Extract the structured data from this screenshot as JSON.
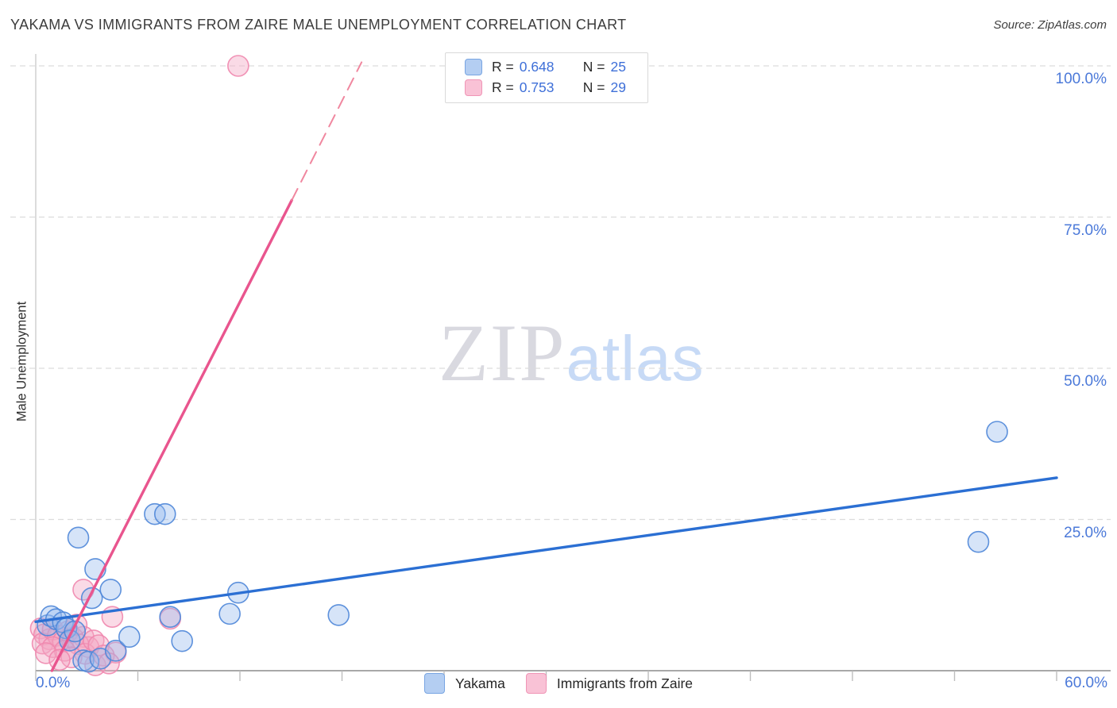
{
  "header": {
    "title": "YAKAMA VS IMMIGRANTS FROM ZAIRE MALE UNEMPLOYMENT CORRELATION CHART",
    "source": "Source: ZipAtlas.com"
  },
  "legend_box": {
    "series": [
      {
        "r_label": "R =",
        "r_value": "0.648",
        "n_label": "N =",
        "n_value": "25",
        "swatch_fill": "#b4cef2",
        "swatch_stroke": "#78a5e2"
      },
      {
        "r_label": "R =",
        "r_value": "0.753",
        "n_label": "N =",
        "n_value": "29",
        "swatch_fill": "#f9c2d6",
        "swatch_stroke": "#f095b6"
      }
    ]
  },
  "watermark": {
    "zip": "ZIP",
    "atlas": "atlas"
  },
  "axes": {
    "y_label": "Male Unemployment",
    "x_min_label": "0.0%",
    "x_max_label": "60.0%"
  },
  "bottom_legend": [
    {
      "label": "Yakama",
      "swatch_fill": "#b4cef2",
      "swatch_stroke": "#78a5e2"
    },
    {
      "label": "Immigrants from Zaire",
      "swatch_fill": "#f9c2d6",
      "swatch_stroke": "#f095b6"
    }
  ],
  "chart_data": {
    "type": "scatter",
    "title": "YAKAMA VS IMMIGRANTS FROM ZAIRE MALE UNEMPLOYMENT CORRELATION CHART",
    "xlabel": "",
    "ylabel": "Male Unemployment",
    "xlim": [
      0,
      60
    ],
    "ylim": [
      0,
      102
    ],
    "x_tick_step_pct": 6,
    "grid": "dashed-horizontal",
    "y_gridlines": [
      {
        "value": 100,
        "label": "100.0%"
      },
      {
        "value": 75,
        "label": "75.0%"
      },
      {
        "value": 50,
        "label": "50.0%"
      },
      {
        "value": 25,
        "label": "25.0%"
      }
    ],
    "series": [
      {
        "name": "Yakama",
        "stroke": "#4e86d8",
        "fill": "#93b9ec",
        "fill_opacity": 0.38,
        "r": 13,
        "n": 25,
        "correlation_R": 0.648,
        "points": [
          [
            0.7,
            7.5
          ],
          [
            0.9,
            9.0
          ],
          [
            1.2,
            8.5
          ],
          [
            1.6,
            8.0
          ],
          [
            1.8,
            7.0
          ],
          [
            2.0,
            5.0
          ],
          [
            2.3,
            6.5
          ],
          [
            2.5,
            22.0
          ],
          [
            2.8,
            1.7
          ],
          [
            3.1,
            1.5
          ],
          [
            3.3,
            12.0
          ],
          [
            3.5,
            16.8
          ],
          [
            3.8,
            2.0
          ],
          [
            4.4,
            13.4
          ],
          [
            4.7,
            3.3
          ],
          [
            5.5,
            5.6
          ],
          [
            7.0,
            25.9
          ],
          [
            7.6,
            25.9
          ],
          [
            7.9,
            8.9
          ],
          [
            8.6,
            4.9
          ],
          [
            11.4,
            9.4
          ],
          [
            11.9,
            12.9
          ],
          [
            17.8,
            9.2
          ],
          [
            55.4,
            21.3
          ],
          [
            56.5,
            39.5
          ]
        ]
      },
      {
        "name": "Immigrants from Zaire",
        "stroke": "#ef87ae",
        "fill": "#f4a7c3",
        "fill_opacity": 0.42,
        "r": 13,
        "n": 29,
        "correlation_R": 0.753,
        "points": [
          [
            11.9,
            100.0
          ],
          [
            2.8,
            13.4
          ],
          [
            4.5,
            8.9
          ],
          [
            2.8,
            5.6
          ],
          [
            3.1,
            3.9
          ],
          [
            3.5,
            0.9
          ],
          [
            4.7,
            3.0
          ],
          [
            7.9,
            8.6
          ],
          [
            0.3,
            7.0
          ],
          [
            0.5,
            6.0
          ],
          [
            0.8,
            5.2
          ],
          [
            0.4,
            4.5
          ],
          [
            1.0,
            6.8
          ],
          [
            1.3,
            5.8
          ],
          [
            1.6,
            4.8
          ],
          [
            1.0,
            3.9
          ],
          [
            1.9,
            6.5
          ],
          [
            2.2,
            5.4
          ],
          [
            2.5,
            4.4
          ],
          [
            1.7,
            3.3
          ],
          [
            2.9,
            2.8
          ],
          [
            2.1,
            2.2
          ],
          [
            3.4,
            5.0
          ],
          [
            3.7,
            4.2
          ],
          [
            4.0,
            2.5
          ],
          [
            4.3,
            1.2
          ],
          [
            0.6,
            2.9
          ],
          [
            1.4,
            1.8
          ],
          [
            2.4,
            7.6
          ]
        ]
      }
    ],
    "trendlines": [
      {
        "series": "Yakama",
        "x1": 0,
        "y1": 8.1,
        "x2": 60,
        "y2": 31.9,
        "color": "#2b6fd3",
        "style": "solid",
        "width": 3.4
      },
      {
        "series": "Immigrants from Zaire",
        "x1": 0.95,
        "y1": 0,
        "x2": 15.05,
        "y2": 77.8,
        "color": "#e9558e",
        "style": "solid",
        "width": 3.4
      },
      {
        "series": "Immigrants from Zaire",
        "x1": 15.05,
        "y1": 77.8,
        "x2": 19.15,
        "y2": 100.6,
        "color": "#f0879f",
        "style": "dashed",
        "width": 2
      }
    ],
    "legend_position": "bottom-center",
    "colors": {
      "grid": "#dcdcdc",
      "axis_line": "#9b9b9b",
      "tick": "#bdbdbd",
      "plot_left_border": "#cccccc",
      "axis_text": "#4b79d9"
    }
  }
}
